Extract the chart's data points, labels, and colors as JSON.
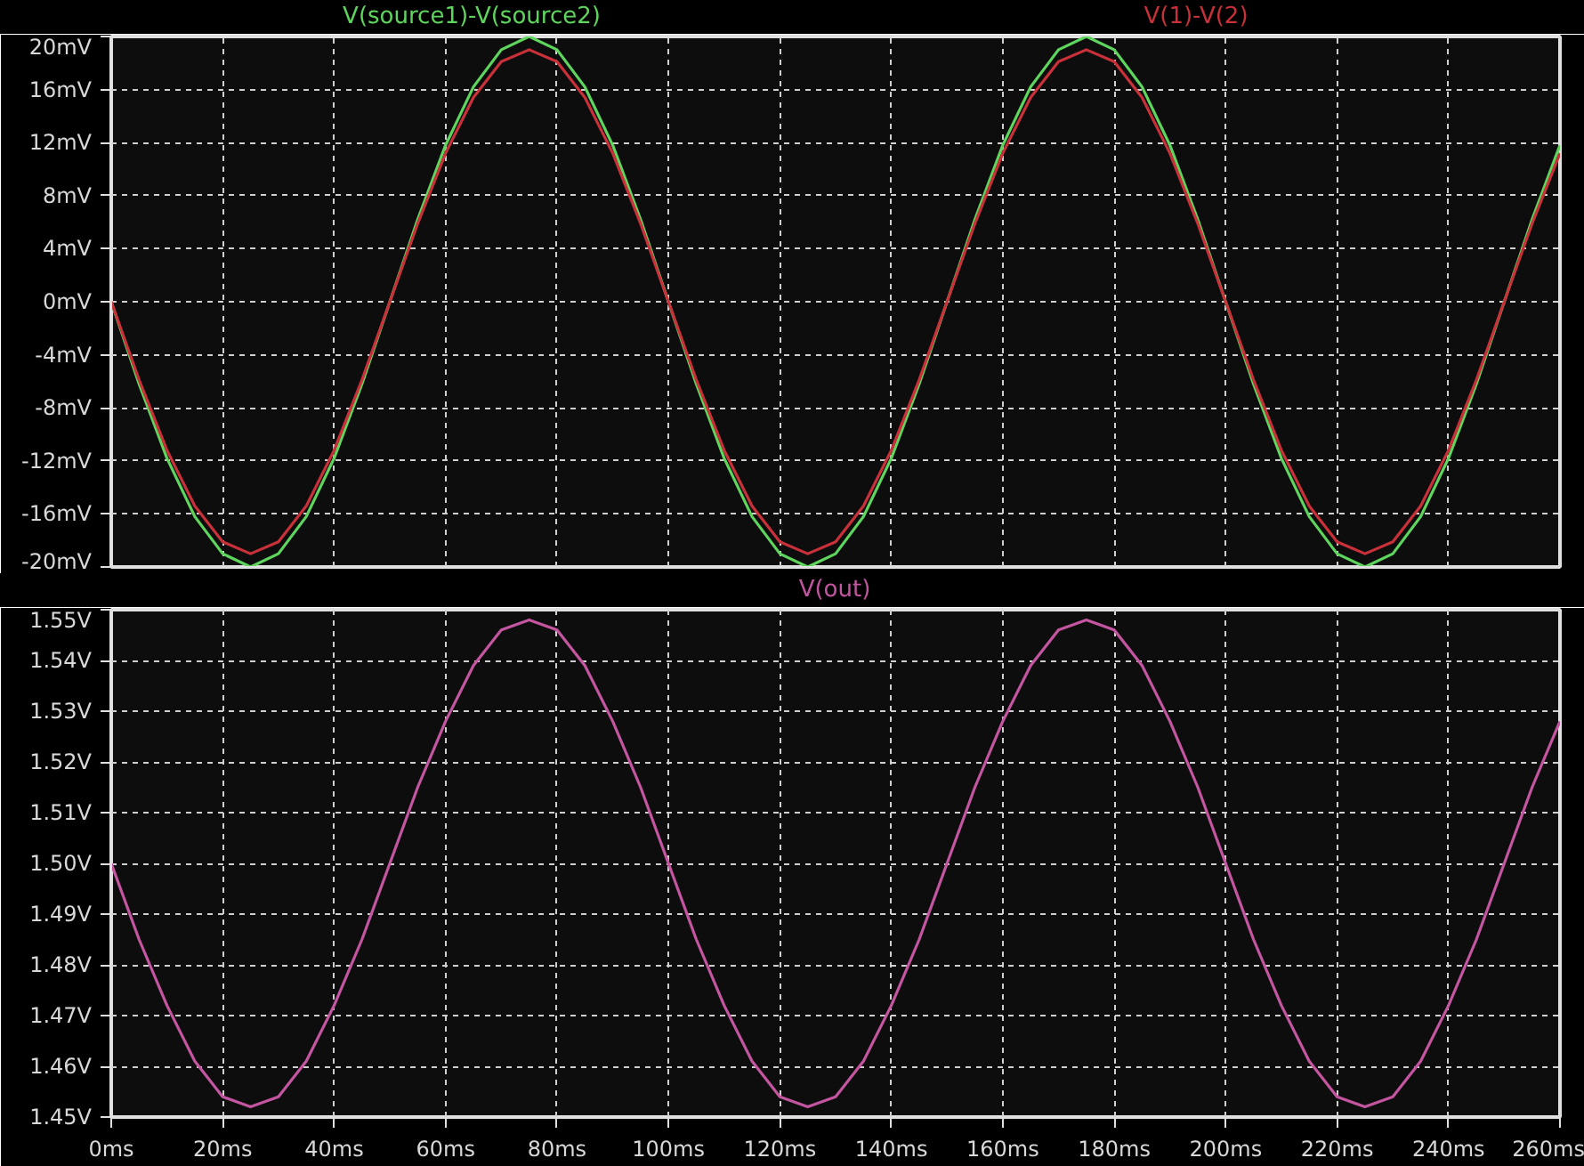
{
  "chart_data": [
    {
      "type": "line",
      "grid": true,
      "tick_labels": "y",
      "x": [
        0,
        5,
        10,
        15,
        20,
        25,
        30,
        35,
        40,
        45,
        50,
        55,
        60,
        65,
        70,
        75,
        80,
        85,
        90,
        95,
        100,
        105,
        110,
        115,
        120,
        125,
        130,
        135,
        140,
        145,
        150,
        155,
        160,
        165,
        170,
        175,
        180,
        185,
        190,
        195,
        200,
        205,
        210,
        215,
        220,
        225,
        230,
        235,
        240,
        245,
        250,
        255,
        260
      ],
      "xlim": [
        0,
        260
      ],
      "xticks": [
        {
          "value": 0,
          "label": null
        },
        {
          "value": 20,
          "label": null
        },
        {
          "value": 40,
          "label": null
        },
        {
          "value": 60,
          "label": null
        },
        {
          "value": 80,
          "label": null
        },
        {
          "value": 100,
          "label": null
        },
        {
          "value": 120,
          "label": null
        },
        {
          "value": 140,
          "label": null
        },
        {
          "value": 160,
          "label": null
        },
        {
          "value": 180,
          "label": null
        },
        {
          "value": 200,
          "label": null
        },
        {
          "value": 220,
          "label": null
        },
        {
          "value": 240,
          "label": null
        },
        {
          "value": 260,
          "label": null
        }
      ],
      "ylim": [
        -20,
        20
      ],
      "yticks": [
        {
          "value": -20,
          "label": "-20mV"
        },
        {
          "value": -16,
          "label": "-16mV"
        },
        {
          "value": -12,
          "label": "-12mV"
        },
        {
          "value": -8,
          "label": "-8mV"
        },
        {
          "value": -4,
          "label": "-4mV"
        },
        {
          "value": 0,
          "label": "0mV"
        },
        {
          "value": 4,
          "label": "4mV"
        },
        {
          "value": 8,
          "label": "8mV"
        },
        {
          "value": 12,
          "label": "12mV"
        },
        {
          "value": 16,
          "label": "16mV"
        },
        {
          "value": 20,
          "label": "20mV"
        }
      ],
      "series": [
        {
          "name": "V(source1)-V(source2)",
          "color": "#5ed65e",
          "values": [
            0,
            -6.2,
            -11.8,
            -16.2,
            -19,
            -20,
            -19,
            -16.2,
            -11.8,
            -6.2,
            0,
            6.2,
            11.8,
            16.2,
            19,
            20,
            19,
            16.2,
            11.8,
            6.2,
            0,
            -6.2,
            -11.8,
            -16.2,
            -19,
            -20,
            -19,
            -16.2,
            -11.8,
            -6.2,
            0,
            6.2,
            11.8,
            16.2,
            19,
            20,
            19,
            16.2,
            11.8,
            6.2,
            0,
            -6.2,
            -11.8,
            -16.2,
            -19,
            -20,
            -19,
            -16.2,
            -11.8,
            -6.2,
            0,
            6.2,
            11.8
          ]
        },
        {
          "name": "V(1)-V(2)",
          "color": "#c8303a",
          "values": [
            0,
            -5.9,
            -11.2,
            -15.4,
            -18.1,
            -19,
            -18.1,
            -15.4,
            -11.2,
            -5.9,
            0,
            5.9,
            11.2,
            15.4,
            18.1,
            19,
            18.1,
            15.4,
            11.2,
            5.9,
            0,
            -5.9,
            -11.2,
            -15.4,
            -18.1,
            -19,
            -18.1,
            -15.4,
            -11.2,
            -5.9,
            0,
            5.9,
            11.2,
            15.4,
            18.1,
            19,
            18.1,
            15.4,
            11.2,
            5.9,
            0,
            -5.9,
            -11.2,
            -15.4,
            -18.1,
            -19,
            -18.1,
            -15.4,
            -11.2,
            -5.9,
            0,
            5.9,
            11.2
          ]
        }
      ]
    },
    {
      "type": "line",
      "grid": true,
      "x": [
        0,
        5,
        10,
        15,
        20,
        25,
        30,
        35,
        40,
        45,
        50,
        55,
        60,
        65,
        70,
        75,
        80,
        85,
        90,
        95,
        100,
        105,
        110,
        115,
        120,
        125,
        130,
        135,
        140,
        145,
        150,
        155,
        160,
        165,
        170,
        175,
        180,
        185,
        190,
        195,
        200,
        205,
        210,
        215,
        220,
        225,
        230,
        235,
        240,
        245,
        250,
        255,
        260
      ],
      "xlim": [
        0,
        260
      ],
      "xticks": [
        {
          "value": 0,
          "label": "0ms"
        },
        {
          "value": 20,
          "label": "20ms"
        },
        {
          "value": 40,
          "label": "40ms"
        },
        {
          "value": 60,
          "label": "60ms"
        },
        {
          "value": 80,
          "label": "80ms"
        },
        {
          "value": 100,
          "label": "100ms"
        },
        {
          "value": 120,
          "label": "120ms"
        },
        {
          "value": 140,
          "label": "140ms"
        },
        {
          "value": 160,
          "label": "160ms"
        },
        {
          "value": 180,
          "label": "180ms"
        },
        {
          "value": 200,
          "label": "200ms"
        },
        {
          "value": 220,
          "label": "220ms"
        },
        {
          "value": 240,
          "label": "240ms"
        },
        {
          "value": 260,
          "label": "260ms"
        }
      ],
      "ylim": [
        1.45,
        1.55
      ],
      "yticks": [
        {
          "value": 1.45,
          "label": "1.45V"
        },
        {
          "value": 1.46,
          "label": "1.46V"
        },
        {
          "value": 1.47,
          "label": "1.47V"
        },
        {
          "value": 1.48,
          "label": "1.48V"
        },
        {
          "value": 1.49,
          "label": "1.49V"
        },
        {
          "value": 1.5,
          "label": "1.50V"
        },
        {
          "value": 1.51,
          "label": "1.51V"
        },
        {
          "value": 1.52,
          "label": "1.52V"
        },
        {
          "value": 1.53,
          "label": "1.53V"
        },
        {
          "value": 1.54,
          "label": "1.54V"
        },
        {
          "value": 1.55,
          "label": "1.55V"
        }
      ],
      "series": [
        {
          "name": "V(out)",
          "color": "#c455a0",
          "values": [
            1.5,
            1.485,
            1.472,
            1.461,
            1.454,
            1.452,
            1.454,
            1.461,
            1.472,
            1.485,
            1.5,
            1.515,
            1.528,
            1.539,
            1.546,
            1.548,
            1.546,
            1.539,
            1.528,
            1.515,
            1.5,
            1.485,
            1.472,
            1.461,
            1.454,
            1.452,
            1.454,
            1.461,
            1.472,
            1.485,
            1.5,
            1.515,
            1.528,
            1.539,
            1.546,
            1.548,
            1.546,
            1.539,
            1.528,
            1.515,
            1.5,
            1.485,
            1.472,
            1.461,
            1.454,
            1.452,
            1.454,
            1.461,
            1.472,
            1.485,
            1.5,
            1.515,
            1.528
          ]
        }
      ]
    }
  ]
}
